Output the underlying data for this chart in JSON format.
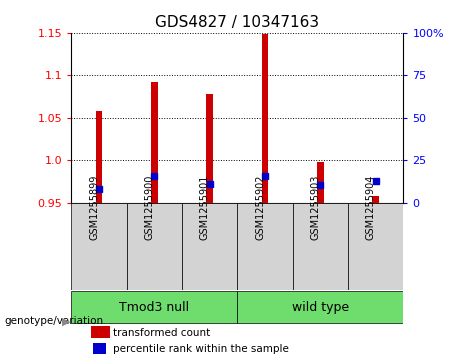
{
  "title": "GDS4827 / 10347163",
  "samples": [
    "GSM1255899",
    "GSM1255900",
    "GSM1255901",
    "GSM1255902",
    "GSM1255903",
    "GSM1255904"
  ],
  "red_values": [
    1.058,
    1.092,
    1.078,
    1.148,
    0.998,
    0.958
  ],
  "blue_values": [
    0.966,
    0.982,
    0.972,
    0.982,
    0.971,
    0.976
  ],
  "ylim_left": [
    0.95,
    1.15
  ],
  "ylim_right": [
    0,
    100
  ],
  "yticks_left": [
    0.95,
    1.0,
    1.05,
    1.1,
    1.15
  ],
  "yticks_right": [
    0,
    25,
    50,
    75,
    100
  ],
  "ytick_labels_right": [
    "0",
    "25",
    "50",
    "75",
    "100%"
  ],
  "group_defs": [
    {
      "label": "Tmod3 null",
      "start": 0,
      "end": 2,
      "color": "#6EDD6E"
    },
    {
      "label": "wild type",
      "start": 3,
      "end": 5,
      "color": "#6EDD6E"
    }
  ],
  "genotype_label": "genotype/variation",
  "legend_red": "transformed count",
  "legend_blue": "percentile rank within the sample",
  "bar_color": "#CC0000",
  "dot_color": "#0000CC",
  "bar_width": 0.12,
  "baseline": 0.95,
  "title_fontsize": 11,
  "tick_fontsize": 8,
  "label_fontsize": 9
}
